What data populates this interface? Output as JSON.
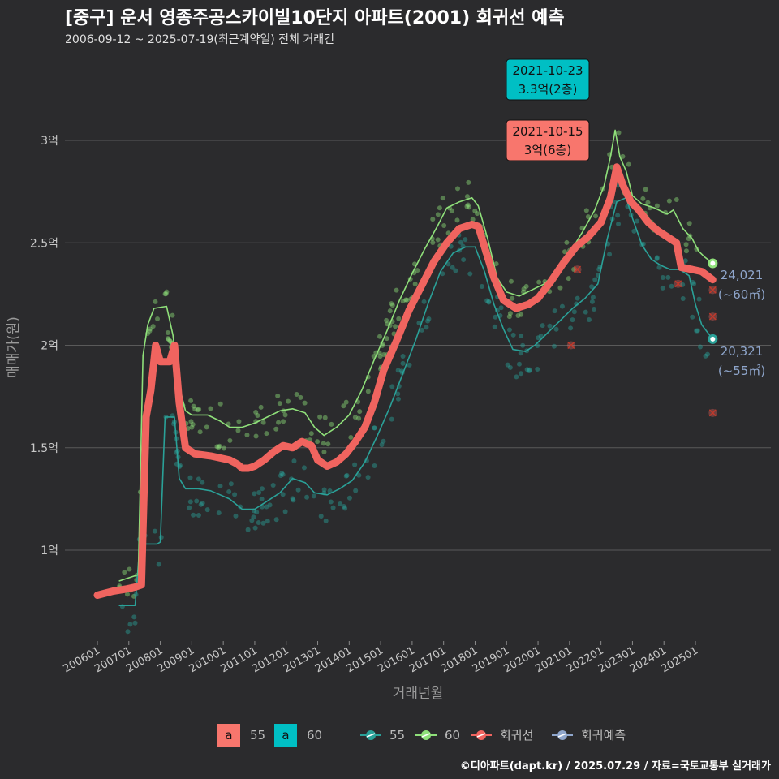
{
  "title": "[중구] 운서 영종주공스카이빌10단지 아파트(2001) 회귀선 예측",
  "subtitle": "2006-09-12 ~ 2025-07-19(최근계약일) 전체 거래건",
  "credit": "©디아파트(dapt.kr) / 2025.07.29 / 자료=국토교통부 실거래가",
  "colors": {
    "s55": "#2aa198",
    "s60": "#8fe07a",
    "regression": "#f0645f",
    "forecast": "#8fa6cc",
    "ann_red": "#f8766d",
    "ann_cyan": "#00bfc4",
    "grid": "#5a5a5a"
  },
  "annotations": [
    {
      "date": "2021-10-23",
      "text": "3.3억(2층)",
      "color": "cyan",
      "x": 2021.81,
      "y": 3.3
    },
    {
      "date": "2021-10-15",
      "text": "3억(6층)",
      "color": "red",
      "x": 2021.79,
      "y": 3.0
    }
  ],
  "end_labels": [
    {
      "value": "24,021",
      "area": "(~60㎡)"
    },
    {
      "value": "20,321",
      "area": "(~55㎡)"
    }
  ],
  "legend": {
    "fill_a_label": "a",
    "fill_items": [
      "55",
      "60"
    ],
    "line_items": [
      "55",
      "60",
      "회귀선",
      "회귀예측"
    ]
  },
  "chart_data": {
    "type": "line",
    "xlabel": "거래년월",
    "ylabel": "매매가(원)",
    "ylim": [
      0.55,
      3.45
    ],
    "xlim": [
      2005.6,
      2025.75
    ],
    "y_ticks": [
      {
        "v": 1.0,
        "label": "1억"
      },
      {
        "v": 1.5,
        "label": "1.5억"
      },
      {
        "v": 2.0,
        "label": "2억"
      },
      {
        "v": 2.5,
        "label": "2.5억"
      },
      {
        "v": 3.0,
        "label": "3억"
      }
    ],
    "x_ticks": [
      "200601",
      "200701",
      "200801",
      "200901",
      "201001",
      "201101",
      "201201",
      "201301",
      "201401",
      "201501",
      "201601",
      "201701",
      "201801",
      "201901",
      "202001",
      "202101",
      "202201",
      "202301",
      "202401",
      "202501"
    ],
    "series": [
      {
        "name": "60",
        "color_key": "s60",
        "points": [
          [
            2006.7,
            0.85
          ],
          [
            2007.1,
            0.87
          ],
          [
            2007.3,
            0.88
          ],
          [
            2007.45,
            1.95
          ],
          [
            2007.6,
            2.1
          ],
          [
            2007.8,
            2.18
          ],
          [
            2008.2,
            2.19
          ],
          [
            2008.4,
            2.05
          ],
          [
            2008.6,
            1.8
          ],
          [
            2008.8,
            1.68
          ],
          [
            2009.0,
            1.66
          ],
          [
            2009.5,
            1.66
          ],
          [
            2009.9,
            1.63
          ],
          [
            2010.2,
            1.6
          ],
          [
            2010.6,
            1.6
          ],
          [
            2011.0,
            1.62
          ],
          [
            2011.4,
            1.65
          ],
          [
            2011.8,
            1.68
          ],
          [
            2012.2,
            1.69
          ],
          [
            2012.6,
            1.67
          ],
          [
            2012.9,
            1.6
          ],
          [
            2013.2,
            1.56
          ],
          [
            2013.6,
            1.6
          ],
          [
            2014.0,
            1.66
          ],
          [
            2014.4,
            1.78
          ],
          [
            2014.8,
            1.93
          ],
          [
            2015.2,
            2.07
          ],
          [
            2015.6,
            2.22
          ],
          [
            2016.0,
            2.35
          ],
          [
            2016.4,
            2.47
          ],
          [
            2016.8,
            2.58
          ],
          [
            2017.1,
            2.67
          ],
          [
            2017.5,
            2.7
          ],
          [
            2017.9,
            2.72
          ],
          [
            2018.1,
            2.68
          ],
          [
            2018.4,
            2.52
          ],
          [
            2018.7,
            2.33
          ],
          [
            2019.0,
            2.26
          ],
          [
            2019.4,
            2.24
          ],
          [
            2019.8,
            2.27
          ],
          [
            2020.2,
            2.3
          ],
          [
            2020.6,
            2.36
          ],
          [
            2021.0,
            2.45
          ],
          [
            2021.4,
            2.55
          ],
          [
            2021.8,
            2.66
          ],
          [
            2022.1,
            2.78
          ],
          [
            2022.3,
            2.92
          ],
          [
            2022.45,
            3.05
          ],
          [
            2022.6,
            2.92
          ],
          [
            2022.8,
            2.85
          ],
          [
            2023.0,
            2.73
          ],
          [
            2023.3,
            2.69
          ],
          [
            2023.7,
            2.67
          ],
          [
            2024.1,
            2.64
          ],
          [
            2024.3,
            2.66
          ],
          [
            2024.6,
            2.57
          ],
          [
            2024.9,
            2.52
          ],
          [
            2025.1,
            2.46
          ],
          [
            2025.3,
            2.43
          ],
          [
            2025.55,
            2.4
          ]
        ]
      },
      {
        "name": "55",
        "color_key": "s55",
        "points": [
          [
            2006.7,
            0.73
          ],
          [
            2007.2,
            0.73
          ],
          [
            2007.35,
            1.03
          ],
          [
            2007.6,
            1.03
          ],
          [
            2007.9,
            1.03
          ],
          [
            2008.0,
            1.04
          ],
          [
            2008.15,
            1.65
          ],
          [
            2008.45,
            1.65
          ],
          [
            2008.6,
            1.35
          ],
          [
            2008.8,
            1.3
          ],
          [
            2009.2,
            1.3
          ],
          [
            2009.6,
            1.29
          ],
          [
            2009.9,
            1.27
          ],
          [
            2010.2,
            1.25
          ],
          [
            2010.6,
            1.2
          ],
          [
            2011.0,
            1.2
          ],
          [
            2011.4,
            1.24
          ],
          [
            2011.8,
            1.28
          ],
          [
            2012.2,
            1.35
          ],
          [
            2012.6,
            1.33
          ],
          [
            2012.9,
            1.28
          ],
          [
            2013.3,
            1.27
          ],
          [
            2013.7,
            1.3
          ],
          [
            2014.1,
            1.34
          ],
          [
            2014.5,
            1.43
          ],
          [
            2014.9,
            1.56
          ],
          [
            2015.3,
            1.7
          ],
          [
            2015.7,
            1.86
          ],
          [
            2016.1,
            2.02
          ],
          [
            2016.5,
            2.2
          ],
          [
            2016.9,
            2.36
          ],
          [
            2017.3,
            2.45
          ],
          [
            2017.7,
            2.48
          ],
          [
            2018.0,
            2.48
          ],
          [
            2018.3,
            2.36
          ],
          [
            2018.6,
            2.2
          ],
          [
            2018.9,
            2.08
          ],
          [
            2019.2,
            1.98
          ],
          [
            2019.6,
            1.97
          ],
          [
            2019.9,
            2.0
          ],
          [
            2020.3,
            2.06
          ],
          [
            2020.7,
            2.12
          ],
          [
            2021.1,
            2.18
          ],
          [
            2021.5,
            2.23
          ],
          [
            2021.9,
            2.3
          ],
          [
            2022.2,
            2.52
          ],
          [
            2022.5,
            2.7
          ],
          [
            2022.8,
            2.72
          ],
          [
            2023.0,
            2.62
          ],
          [
            2023.3,
            2.49
          ],
          [
            2023.6,
            2.42
          ],
          [
            2023.9,
            2.39
          ],
          [
            2024.2,
            2.37
          ],
          [
            2024.5,
            2.37
          ],
          [
            2024.8,
            2.34
          ],
          [
            2025.0,
            2.2
          ],
          [
            2025.2,
            2.1
          ],
          [
            2025.55,
            2.03
          ]
        ]
      },
      {
        "name": "회귀선",
        "color_key": "regression",
        "points": [
          [
            2006.0,
            0.78
          ],
          [
            2006.5,
            0.8
          ],
          [
            2006.9,
            0.81
          ],
          [
            2007.2,
            0.82
          ],
          [
            2007.4,
            0.83
          ],
          [
            2007.55,
            1.65
          ],
          [
            2007.7,
            1.78
          ],
          [
            2007.85,
            2.0
          ],
          [
            2008.0,
            1.92
          ],
          [
            2008.3,
            1.92
          ],
          [
            2008.45,
            2.0
          ],
          [
            2008.6,
            1.72
          ],
          [
            2008.8,
            1.5
          ],
          [
            2009.1,
            1.47
          ],
          [
            2009.6,
            1.46
          ],
          [
            2009.9,
            1.45
          ],
          [
            2010.2,
            1.44
          ],
          [
            2010.45,
            1.42
          ],
          [
            2010.6,
            1.4
          ],
          [
            2010.8,
            1.4
          ],
          [
            2011.0,
            1.41
          ],
          [
            2011.3,
            1.44
          ],
          [
            2011.6,
            1.48
          ],
          [
            2011.9,
            1.51
          ],
          [
            2012.2,
            1.5
          ],
          [
            2012.5,
            1.53
          ],
          [
            2012.8,
            1.51
          ],
          [
            2013.0,
            1.44
          ],
          [
            2013.3,
            1.41
          ],
          [
            2013.6,
            1.43
          ],
          [
            2013.9,
            1.47
          ],
          [
            2014.2,
            1.53
          ],
          [
            2014.5,
            1.6
          ],
          [
            2014.8,
            1.72
          ],
          [
            2015.1,
            1.88
          ],
          [
            2015.5,
            2.02
          ],
          [
            2015.9,
            2.17
          ],
          [
            2016.3,
            2.29
          ],
          [
            2016.7,
            2.41
          ],
          [
            2017.1,
            2.5
          ],
          [
            2017.5,
            2.57
          ],
          [
            2017.9,
            2.59
          ],
          [
            2018.1,
            2.58
          ],
          [
            2018.3,
            2.48
          ],
          [
            2018.6,
            2.33
          ],
          [
            2018.9,
            2.22
          ],
          [
            2019.3,
            2.18
          ],
          [
            2019.7,
            2.2
          ],
          [
            2020.0,
            2.23
          ],
          [
            2020.4,
            2.31
          ],
          [
            2020.8,
            2.4
          ],
          [
            2021.2,
            2.48
          ],
          [
            2021.6,
            2.53
          ],
          [
            2022.0,
            2.6
          ],
          [
            2022.3,
            2.72
          ],
          [
            2022.5,
            2.87
          ],
          [
            2022.7,
            2.78
          ],
          [
            2022.95,
            2.7
          ],
          [
            2023.2,
            2.66
          ],
          [
            2023.5,
            2.6
          ],
          [
            2023.8,
            2.56
          ],
          [
            2024.1,
            2.53
          ],
          [
            2024.4,
            2.5
          ],
          [
            2024.55,
            2.38
          ],
          [
            2024.9,
            2.37
          ],
          [
            2025.2,
            2.36
          ],
          [
            2025.55,
            2.32
          ]
        ]
      }
    ],
    "forecast_points": [
      {
        "x": 2025.55,
        "y": 2.4,
        "series": "60"
      },
      {
        "x": 2025.55,
        "y": 2.03,
        "series": "55"
      }
    ]
  }
}
